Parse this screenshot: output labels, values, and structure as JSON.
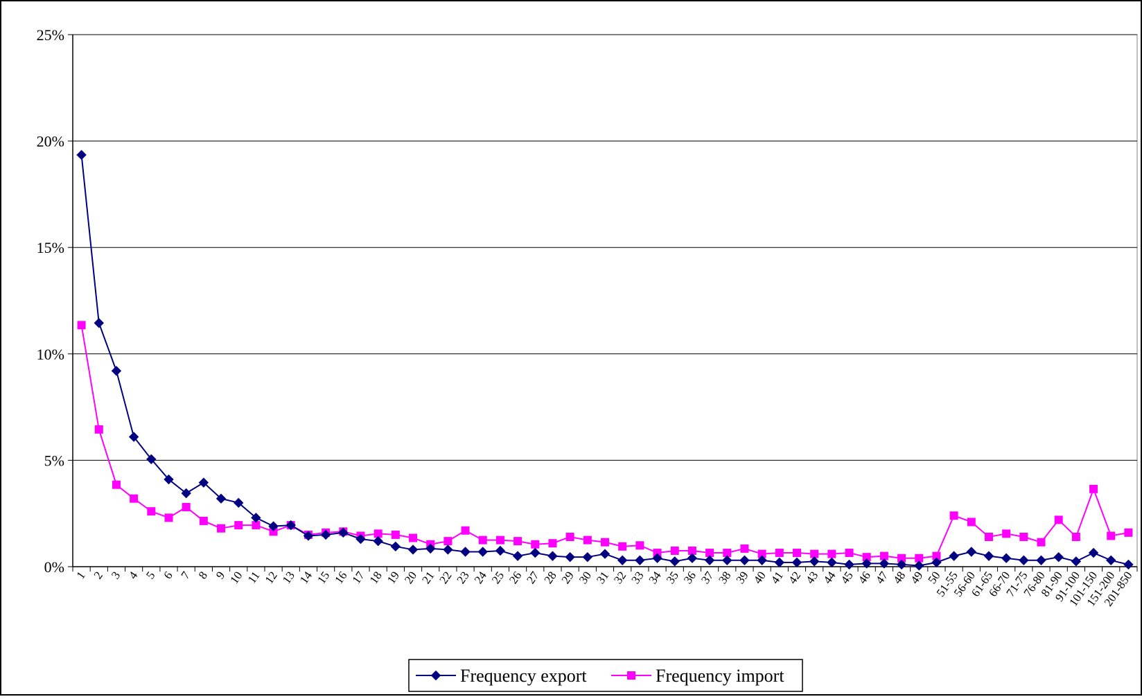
{
  "chart_data": {
    "type": "line",
    "title": "",
    "xlabel": "",
    "ylabel": "",
    "ylim": [
      0,
      25
    ],
    "y_tick_values": [
      0,
      5,
      10,
      15,
      20,
      25
    ],
    "y_tick_labels": [
      "0%",
      "5%",
      "10%",
      "15%",
      "20%",
      "25%"
    ],
    "grid": "horizontal",
    "legend_position": "bottom",
    "categories": [
      "1",
      "2",
      "3",
      "4",
      "5",
      "6",
      "7",
      "8",
      "9",
      "10",
      "11",
      "12",
      "13",
      "14",
      "15",
      "16",
      "17",
      "18",
      "19",
      "20",
      "21",
      "22",
      "23",
      "24",
      "25",
      "26",
      "27",
      "28",
      "29",
      "30",
      "31",
      "32",
      "33",
      "34",
      "35",
      "36",
      "37",
      "38",
      "39",
      "40",
      "41",
      "42",
      "43",
      "44",
      "45",
      "46",
      "47",
      "48",
      "49",
      "50",
      "51-55",
      "56-60",
      "61-65",
      "66-70",
      "71-75",
      "76-80",
      "81-90",
      "91-100",
      "101-150",
      "151-200",
      "201-850"
    ],
    "series": [
      {
        "name": "Frequency export",
        "color": "#000080",
        "marker": "diamond",
        "values": [
          19.35,
          11.45,
          9.2,
          6.1,
          5.05,
          4.1,
          3.45,
          3.95,
          3.2,
          3.0,
          2.3,
          1.9,
          1.95,
          1.45,
          1.5,
          1.6,
          1.3,
          1.2,
          0.95,
          0.8,
          0.85,
          0.8,
          0.7,
          0.7,
          0.75,
          0.5,
          0.65,
          0.5,
          0.45,
          0.45,
          0.6,
          0.3,
          0.3,
          0.4,
          0.25,
          0.4,
          0.3,
          0.3,
          0.3,
          0.3,
          0.2,
          0.2,
          0.25,
          0.2,
          0.1,
          0.15,
          0.15,
          0.1,
          0.05,
          0.2,
          0.5,
          0.7,
          0.5,
          0.4,
          0.3,
          0.3,
          0.45,
          0.25,
          0.65,
          0.3,
          0.1
        ]
      },
      {
        "name": "Frequency import",
        "color": "#FF00FF",
        "marker": "square",
        "values": [
          11.35,
          6.45,
          3.85,
          3.2,
          2.6,
          2.3,
          2.8,
          2.15,
          1.8,
          1.95,
          1.95,
          1.65,
          1.95,
          1.5,
          1.6,
          1.65,
          1.45,
          1.55,
          1.5,
          1.35,
          1.05,
          1.2,
          1.7,
          1.25,
          1.25,
          1.2,
          1.05,
          1.1,
          1.4,
          1.25,
          1.15,
          0.95,
          1.0,
          0.65,
          0.75,
          0.75,
          0.65,
          0.65,
          0.85,
          0.6,
          0.65,
          0.65,
          0.6,
          0.6,
          0.65,
          0.45,
          0.5,
          0.4,
          0.4,
          0.5,
          2.4,
          2.1,
          1.4,
          1.55,
          1.4,
          1.15,
          2.2,
          1.4,
          3.65,
          1.45,
          1.6
        ]
      }
    ]
  }
}
